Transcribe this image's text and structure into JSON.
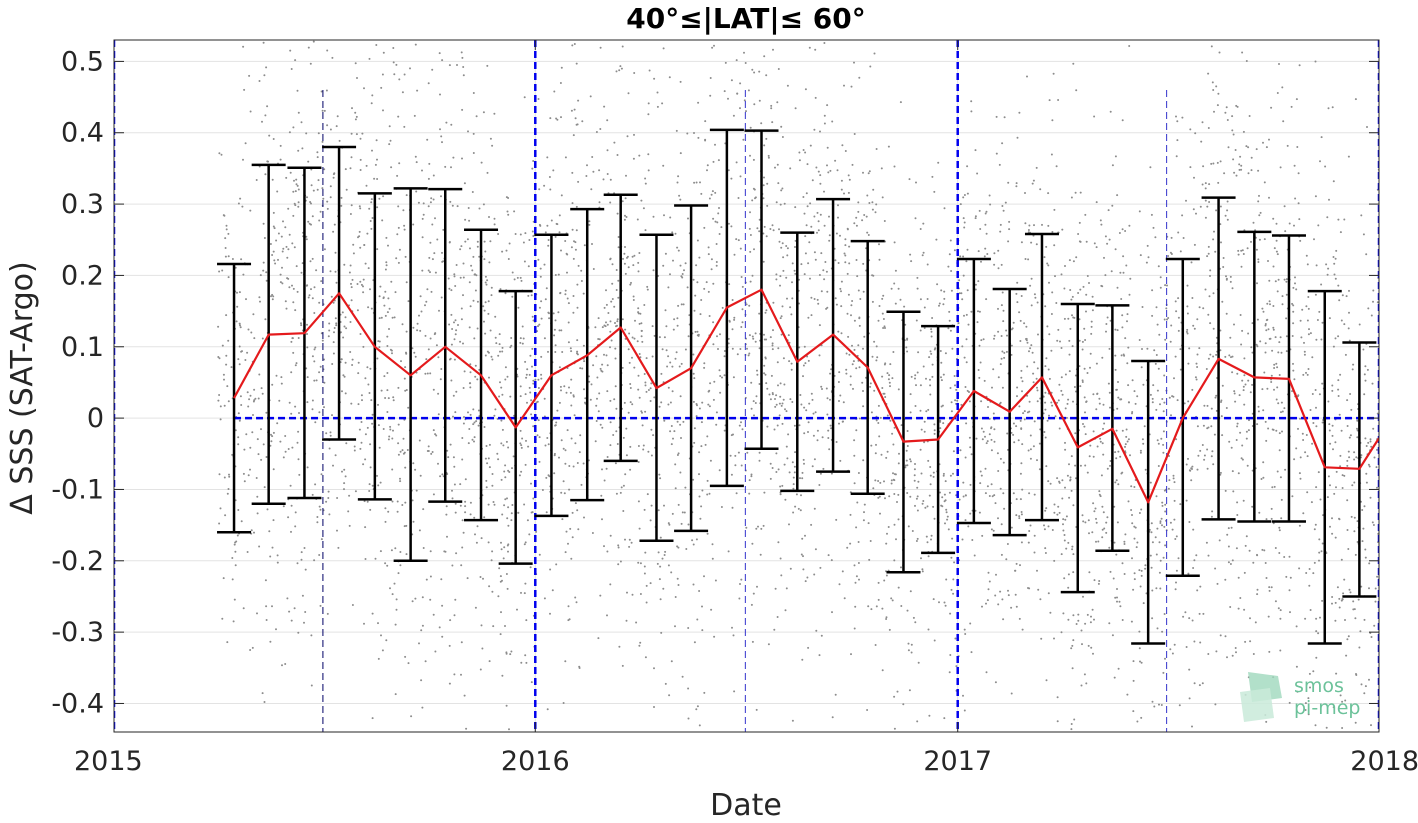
{
  "chart_data": {
    "type": "line",
    "title": "40°≤|LAT|≤ 60°",
    "xlabel": "Date",
    "ylabel": "Δ SSS (SAT-Argo)",
    "x_axis": "date",
    "xlim": [
      "2015-01-01",
      "2018-01-01"
    ],
    "ylim": [
      -0.44,
      0.53
    ],
    "x_ticks": [
      {
        "date": "2015-01-01",
        "label": "2015"
      },
      {
        "date": "2016-01-01",
        "label": "2016"
      },
      {
        "date": "2017-01-01",
        "label": "2017"
      },
      {
        "date": "2018-01-01",
        "label": "2018"
      }
    ],
    "y_ticks": [
      {
        "value": 0.5,
        "label": "0.5"
      },
      {
        "value": 0.4,
        "label": "0.4"
      },
      {
        "value": 0.3,
        "label": "0.3"
      },
      {
        "value": 0.2,
        "label": "0.2"
      },
      {
        "value": 0.1,
        "label": "0.1"
      },
      {
        "value": 0.0,
        "label": "0"
      },
      {
        "value": -0.1,
        "label": "-0.1"
      },
      {
        "value": -0.2,
        "label": "-0.2"
      },
      {
        "value": -0.3,
        "label": "-0.3"
      },
      {
        "value": -0.4,
        "label": "-0.4"
      }
    ],
    "grid": true,
    "series": [
      {
        "color": "#e41a1c",
        "x": [
          "2015-04-15",
          "2015-05-15",
          "2015-06-15",
          "2015-07-15",
          "2015-08-15",
          "2015-09-15",
          "2015-10-15",
          "2015-11-15",
          "2015-12-15",
          "2016-01-15",
          "2016-02-15",
          "2016-03-15",
          "2016-04-15",
          "2016-05-15",
          "2016-06-15",
          "2016-07-15",
          "2016-08-15",
          "2016-09-15",
          "2016-10-15",
          "2016-11-15",
          "2016-12-15",
          "2017-01-15",
          "2017-02-15",
          "2017-03-15",
          "2017-04-15",
          "2017-05-15",
          "2017-06-15",
          "2017-07-15",
          "2017-08-15",
          "2017-09-15",
          "2017-10-15",
          "2017-11-15",
          "2017-12-15",
          "2018-01-01"
        ],
        "y": [
          0.028,
          0.117,
          0.119,
          0.175,
          0.1,
          0.06,
          0.1,
          0.06,
          -0.013,
          0.06,
          0.088,
          0.127,
          0.042,
          0.07,
          0.155,
          0.18,
          0.079,
          0.117,
          0.071,
          -0.033,
          -0.03,
          0.038,
          0.009,
          0.057,
          -0.041,
          -0.015,
          -0.118,
          0.0,
          0.083,
          0.057,
          0.055,
          -0.069,
          -0.071,
          -0.028
        ]
      }
    ],
    "error_bars": {
      "color": "#000000",
      "x": [
        "2015-04-15",
        "2015-05-15",
        "2015-06-15",
        "2015-07-15",
        "2015-08-15",
        "2015-09-15",
        "2015-10-15",
        "2015-11-15",
        "2015-12-15",
        "2016-01-15",
        "2016-02-15",
        "2016-03-15",
        "2016-04-15",
        "2016-05-15",
        "2016-06-15",
        "2016-07-15",
        "2016-08-15",
        "2016-09-15",
        "2016-10-15",
        "2016-11-15",
        "2016-12-15",
        "2017-01-15",
        "2017-02-15",
        "2017-03-15",
        "2017-04-15",
        "2017-05-15",
        "2017-06-15",
        "2017-07-15",
        "2017-08-15",
        "2017-09-15",
        "2017-10-15",
        "2017-11-15",
        "2017-12-15"
      ],
      "upper": [
        0.216,
        0.355,
        0.351,
        0.38,
        0.315,
        0.322,
        0.321,
        0.264,
        0.178,
        0.257,
        0.293,
        0.313,
        0.257,
        0.298,
        0.404,
        0.403,
        0.26,
        0.307,
        0.248,
        0.149,
        0.129,
        0.223,
        0.181,
        0.258,
        0.16,
        0.158,
        0.08,
        0.223,
        0.309,
        0.261,
        0.256,
        0.178,
        0.106
      ],
      "lower": [
        -0.16,
        -0.12,
        -0.112,
        -0.03,
        -0.114,
        -0.2,
        -0.117,
        -0.143,
        -0.204,
        -0.137,
        -0.115,
        -0.06,
        -0.172,
        -0.158,
        -0.095,
        -0.043,
        -0.102,
        -0.075,
        -0.106,
        -0.216,
        -0.189,
        -0.147,
        -0.164,
        -0.143,
        -0.244,
        -0.186,
        -0.316,
        -0.221,
        -0.142,
        -0.145,
        -0.145,
        -0.316,
        -0.25
      ]
    },
    "reference_lines": {
      "zero_line": {
        "y": 0,
        "color": "#0000ee"
      },
      "year_boundaries": {
        "dates": [
          "2015-01-01",
          "2016-01-01",
          "2017-01-01",
          "2018-01-01"
        ],
        "color": "#0000ee"
      },
      "mid_year": {
        "dates": [
          "2015-07-01",
          "2016-07-01",
          "2017-07-01"
        ],
        "colors": [
          "#000066",
          "#3333cc",
          "#3333cc"
        ]
      }
    },
    "scatter_background": {
      "color": "#8c8c8c"
    }
  },
  "logo": {
    "line1": "smos",
    "line2": "pi-mep"
  }
}
